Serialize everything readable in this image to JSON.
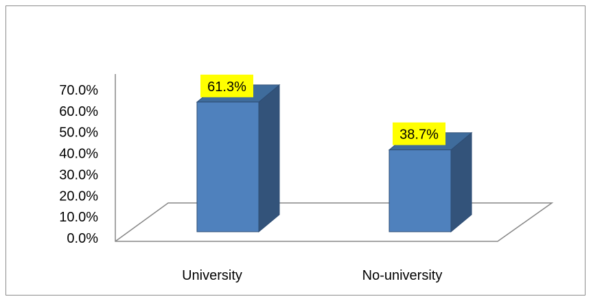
{
  "chart_data": {
    "type": "bar",
    "style": "3d-column",
    "categories": [
      "University",
      "No-university"
    ],
    "values": [
      61.3,
      38.7
    ],
    "data_labels": [
      "61.3%",
      "38.7%"
    ],
    "y_ticks": [
      "0.0%",
      "10.0%",
      "20.0%",
      "30.0%",
      "40.0%",
      "50.0%",
      "60.0%",
      "70.0%"
    ],
    "ylim": [
      0,
      70
    ],
    "grid": false,
    "legend": "none",
    "colors": {
      "bar_front": "#4f81bd",
      "bar_side": "#33537a",
      "bar_top": "#3f6c9c",
      "bar_edge": "#2e4d74",
      "label_bg": "#ffff00",
      "axis": "#868686"
    }
  }
}
